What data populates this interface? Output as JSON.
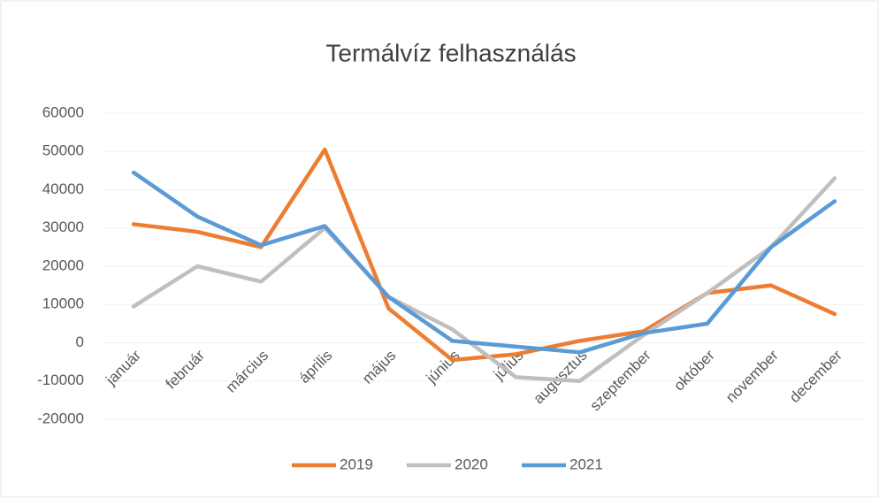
{
  "chart_data": {
    "type": "line",
    "title": "Termálvíz felhasználás",
    "categories": [
      "január",
      "február",
      "március",
      "április",
      "május",
      "június",
      "július",
      "augusztus",
      "szeptember",
      "október",
      "november",
      "december"
    ],
    "series": [
      {
        "name": "2019",
        "color": "#ed7d31",
        "values": [
          31000,
          29000,
          25000,
          50500,
          9000,
          -4500,
          -3000,
          500,
          3000,
          13000,
          15000,
          7500
        ]
      },
      {
        "name": "2020",
        "color": "#bfbfbf",
        "values": [
          9500,
          20000,
          16000,
          30000,
          12000,
          3500,
          -9000,
          -10000,
          2000,
          13000,
          25000,
          43000
        ]
      },
      {
        "name": "2021",
        "color": "#5b9bd5",
        "values": [
          44500,
          33000,
          25500,
          30500,
          12000,
          500,
          -1000,
          -2500,
          2500,
          5000,
          25000,
          37000
        ]
      }
    ],
    "ylim": [
      -20000,
      60000
    ],
    "yticks": [
      -20000,
      -10000,
      0,
      10000,
      20000,
      30000,
      40000,
      50000,
      60000
    ],
    "grid": true,
    "legend": "bottom"
  }
}
